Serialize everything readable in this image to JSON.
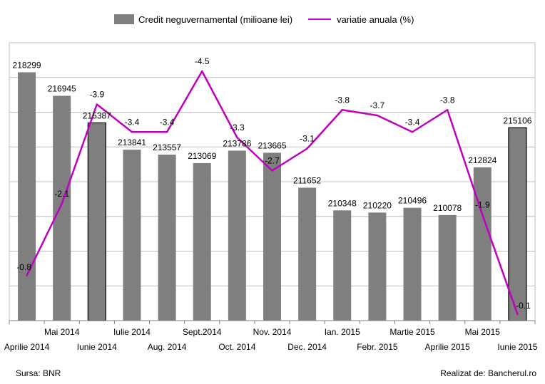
{
  "chart_data": {
    "type": "bar",
    "categories": [
      "Aprilie 2014",
      "Mai 2014",
      "Iunie 2014",
      "Iulie 2014",
      "Aug. 2014",
      "Sept.2014",
      "Oct. 2014",
      "Nov. 2014",
      "Dec. 2014",
      "Ian. 2015",
      "Febr. 2015",
      "Martie 2015",
      "Aprilie 2015",
      "Mai 2015",
      "Iunie 2015"
    ],
    "series": [
      {
        "name": "Credit neguvernamental (milioane lei)",
        "type": "bar",
        "color": "#7f7f7f",
        "values": [
          218299,
          216945,
          215387,
          213841,
          213557,
          213069,
          213786,
          213665,
          211652,
          210348,
          210220,
          210496,
          210078,
          212824,
          215106
        ],
        "labels": [
          "218299",
          "216945",
          "215387",
          "213841",
          "213557",
          "213069",
          "213786",
          "213665",
          "211652",
          "210348",
          "210220",
          "210496",
          "210078",
          "212824",
          "215106"
        ]
      },
      {
        "name": "variatie anuala (%)",
        "type": "line",
        "color": "#c000c0",
        "values": [
          -0.8,
          -2.1,
          -3.9,
          -3.4,
          -3.4,
          -4.5,
          -3.3,
          -2.7,
          -3.1,
          -3.8,
          -3.7,
          -3.4,
          -3.8,
          -1.9,
          -0.1
        ],
        "labels": [
          "-0.8",
          "-2.1",
          "-3.9",
          "-3.4",
          "-3.4",
          "-4.5",
          "-3.3",
          "-2.7",
          "-3.1",
          "-3.8",
          "-3.7",
          "-3.4",
          "-3.8",
          "-1.9",
          "-0.1"
        ]
      }
    ],
    "highlighted_bars": [
      2,
      14
    ],
    "grid": true,
    "legend_position": "top"
  },
  "footer": {
    "source": "Sursa: BNR",
    "credit": "Realizat de: Bancherul.ro"
  }
}
